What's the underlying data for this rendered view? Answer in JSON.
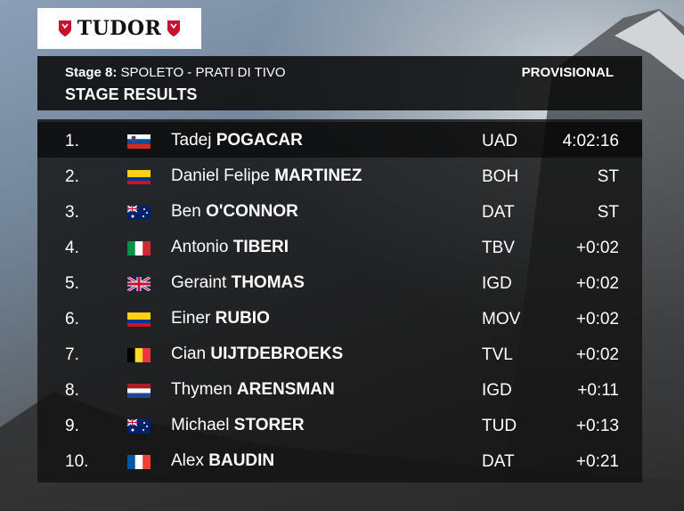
{
  "logo": {
    "text": "TUDOR"
  },
  "header": {
    "stage_label": "Stage 8:",
    "stage_route": "SPOLETO - PRATI DI TIVO",
    "status": "PROVISIONAL",
    "title": "STAGE RESULTS"
  },
  "results": [
    {
      "pos": "1.",
      "flag": "slovenia-flag",
      "first": "Tadej",
      "last": "POGACAR",
      "team": "UAD",
      "time": "4:02:16"
    },
    {
      "pos": "2.",
      "flag": "colombia-flag",
      "first": "Daniel Felipe",
      "last": "MARTINEZ",
      "team": "BOH",
      "time": "ST"
    },
    {
      "pos": "3.",
      "flag": "australia-flag",
      "first": "Ben",
      "last": "O'CONNOR",
      "team": "DAT",
      "time": "ST"
    },
    {
      "pos": "4.",
      "flag": "italy-flag",
      "first": "Antonio",
      "last": "TIBERI",
      "team": "TBV",
      "time": "+0:02"
    },
    {
      "pos": "5.",
      "flag": "uk-flag",
      "first": "Geraint",
      "last": "THOMAS",
      "team": "IGD",
      "time": "+0:02"
    },
    {
      "pos": "6.",
      "flag": "colombia-flag",
      "first": "Einer",
      "last": "RUBIO",
      "team": "MOV",
      "time": "+0:02"
    },
    {
      "pos": "7.",
      "flag": "belgium-flag",
      "first": "Cian",
      "last": "UIJTDEBROEKS",
      "team": "TVL",
      "time": "+0:02"
    },
    {
      "pos": "8.",
      "flag": "netherlands-flag",
      "first": "Thymen",
      "last": "ARENSMAN",
      "team": "IGD",
      "time": "+0:11"
    },
    {
      "pos": "9.",
      "flag": "australia-flag",
      "first": "Michael",
      "last": "STORER",
      "team": "TUD",
      "time": "+0:13"
    },
    {
      "pos": "10.",
      "flag": "france-flag",
      "first": "Alex",
      "last": "BAUDIN",
      "team": "DAT",
      "time": "+0:21"
    }
  ]
}
